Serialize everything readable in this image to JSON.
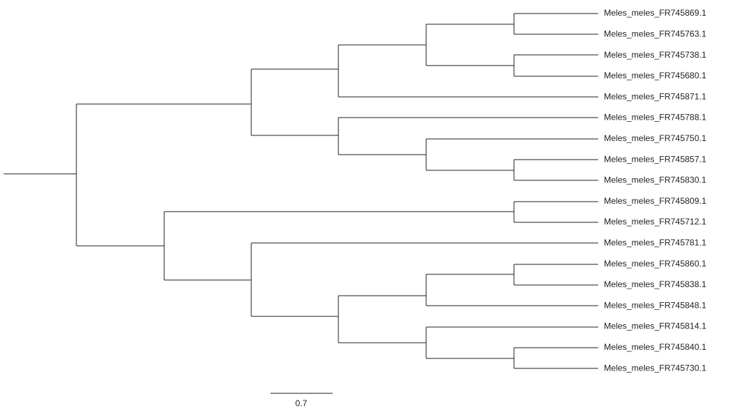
{
  "leaves": [
    "Meles_meles_FR745869.1",
    "Meles_meles_FR745763.1",
    "Meles_meles_FR745738.1",
    "Meles_meles_FR745680.1",
    "Meles_meles_FR745871.1",
    "Meles_meles_FR745788.1",
    "Meles_meles_FR745750.1",
    "Meles_meles_FR745857.1",
    "Meles_meles_FR745830.1",
    "Meles_meles_FR745809.1",
    "Meles_meles_FR745712.1",
    "Meles_meles_FR745781.1",
    "Meles_meles_FR745860.1",
    "Meles_meles_FR745838.1",
    "Meles_meles_FR745848.1",
    "Meles_meles_FR745814.1",
    "Meles_meles_FR745840.1",
    "Meles_meles_FR745730.1"
  ],
  "scale_label": "0.7"
}
